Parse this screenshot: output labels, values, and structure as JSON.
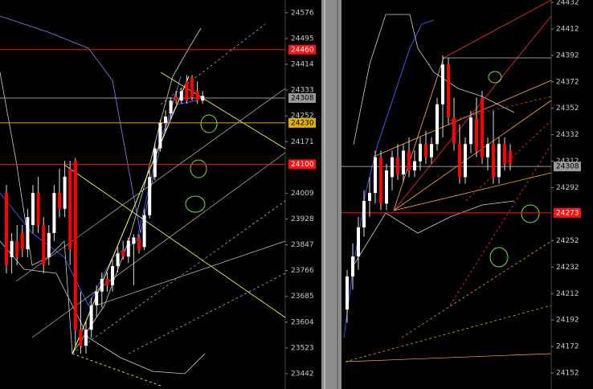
{
  "chart_data": [
    {
      "type": "candlestick",
      "ylim": [
        23394,
        24616
      ],
      "yticks": [
        24576,
        24495,
        24414,
        24333,
        24252,
        24171,
        24009,
        23928,
        23847,
        23766,
        23685,
        23604,
        23523,
        23442
      ],
      "open": [
        24010,
        23808,
        23859,
        23884,
        23833,
        23909,
        24010,
        23909,
        23808,
        23884,
        24010,
        23960,
        24086,
        24111,
        23580,
        23530,
        23580,
        23657,
        23700,
        23740,
        23720,
        23780,
        23830,
        23810,
        23850,
        23870,
        23840,
        23940,
        24060,
        24150,
        24230,
        24260,
        24310,
        24300,
        24360,
        24370,
        24330,
        24300
      ],
      "high": [
        24035,
        23884,
        23909,
        23909,
        23960,
        24035,
        24061,
        23934,
        23909,
        24035,
        24086,
        24111,
        24111,
        24120,
        23700,
        23606,
        23680,
        23720,
        23760,
        23760,
        23800,
        23840,
        23860,
        23870,
        23880,
        23880,
        23960,
        24080,
        24170,
        24240,
        24270,
        24310,
        24330,
        24340,
        24380,
        24380,
        24360,
        24330
      ],
      "low": [
        23757,
        23757,
        23783,
        23808,
        23808,
        23884,
        23884,
        23757,
        23783,
        23859,
        23934,
        23934,
        23783,
        23530,
        23505,
        23505,
        23555,
        23620,
        23650,
        23700,
        23700,
        23760,
        23800,
        23790,
        23720,
        23820,
        23830,
        23930,
        24050,
        24140,
        24200,
        24240,
        24290,
        24290,
        24290,
        24300,
        24290,
        24290
      ],
      "close": [
        23783,
        23859,
        23808,
        23833,
        23934,
        24010,
        23909,
        23783,
        23884,
        24010,
        23960,
        24061,
        23833,
        23580,
        23530,
        23580,
        23657,
        23700,
        23740,
        23720,
        23780,
        23820,
        23810,
        23860,
        23870,
        23830,
        23940,
        24060,
        24150,
        24230,
        24250,
        24300,
        24300,
        24330,
        24300,
        24310,
        24300,
        24315
      ],
      "up_color": "#ffffff",
      "down_color": "#ff0000",
      "price_tags": [
        24460,
        24308,
        24230,
        24100
      ],
      "price_tag_colors": [
        "#ff1010",
        "#9a9a9a",
        "#e0b000",
        "#ff1010"
      ]
    },
    {
      "type": "candlestick",
      "ylim": [
        24139.9,
        24433.8
      ],
      "yticks": [
        24432,
        24412,
        24392,
        24372,
        24352,
        24332,
        24312,
        24292,
        24252,
        24232,
        24212,
        24192,
        24172,
        24152
      ],
      "open": [
        24200,
        24225,
        24240,
        24262,
        24282,
        24288,
        24315,
        24280,
        24300,
        24315,
        24302,
        24320,
        24305,
        24312,
        24325,
        24315,
        24325,
        24355,
        24385,
        24345,
        24325,
        24300,
        24325,
        24345,
        24360,
        24315,
        24325,
        24300,
        24325,
        24320
      ],
      "high": [
        24230,
        24250,
        24270,
        24290,
        24300,
        24320,
        24320,
        24310,
        24320,
        24325,
        24325,
        24330,
        24320,
        24330,
        24335,
        24330,
        24360,
        24392,
        24390,
        24360,
        24340,
        24330,
        24350,
        24360,
        24365,
        24330,
        24350,
        24330,
        24330,
        24325
      ],
      "low": [
        24190,
        24215,
        24230,
        24255,
        24270,
        24280,
        24275,
        24275,
        24290,
        24298,
        24296,
        24300,
        24300,
        24305,
        24310,
        24310,
        24320,
        24330,
        24340,
        24320,
        24295,
        24295,
        24318,
        24315,
        24310,
        24305,
        24295,
        24295,
        24305,
        24305
      ],
      "close": [
        24225,
        24240,
        24262,
        24282,
        24288,
        24315,
        24280,
        24305,
        24315,
        24302,
        24320,
        24305,
        24312,
        24325,
        24315,
        24325,
        24355,
        24385,
        24345,
        24325,
        24300,
        24325,
        24345,
        24320,
        24315,
        24325,
        24300,
        24325,
        24310,
        24310
      ],
      "up_color": "#ffffff",
      "down_color": "#ff0000",
      "price_tags": [
        24308,
        24273
      ],
      "price_tag_colors": [
        "#9a9a9a",
        "#ff1010"
      ]
    }
  ]
}
